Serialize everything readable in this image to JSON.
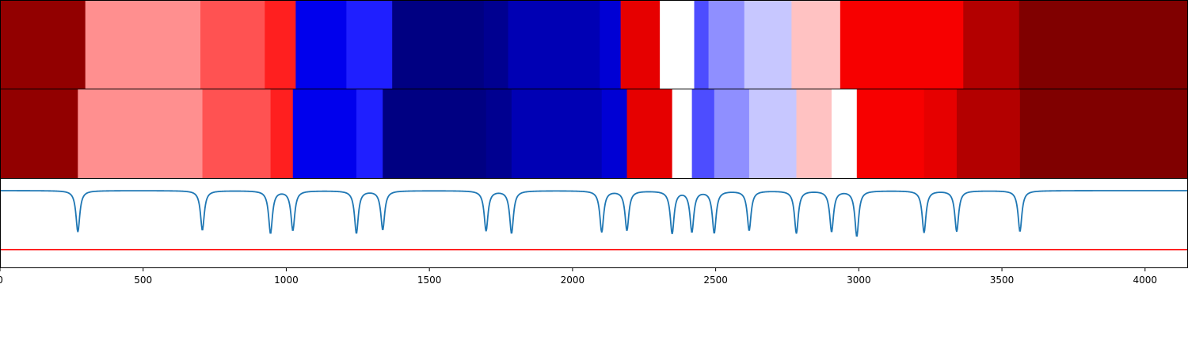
{
  "chart_data": {
    "type": "heatmap",
    "title": "",
    "xlabel": "",
    "ylabel": "",
    "xlim": [
      0,
      4150
    ],
    "x_ticks": [
      0,
      500,
      1000,
      1500,
      2000,
      2500,
      3000,
      3500,
      4000
    ],
    "x_tick_labels": [
      "0",
      "500",
      "1000",
      "1500",
      "2000",
      "2500",
      "3000",
      "3500",
      "4000"
    ],
    "colormap": "seismic",
    "rows": [
      {
        "segments": [
          {
            "start": 0,
            "end": 298,
            "value": 0.93
          },
          {
            "start": 298,
            "end": 700,
            "value": 0.22
          },
          {
            "start": 700,
            "end": 925,
            "value": 0.34
          },
          {
            "start": 925,
            "end": 1033,
            "value": 0.44
          },
          {
            "start": 1033,
            "end": 1210,
            "value": -0.55
          },
          {
            "start": 1210,
            "end": 1370,
            "value": -0.44
          },
          {
            "start": 1370,
            "end": 1690,
            "value": -0.85
          },
          {
            "start": 1690,
            "end": 1775,
            "value": -0.81
          },
          {
            "start": 1775,
            "end": 2095,
            "value": -0.71
          },
          {
            "start": 2095,
            "end": 2168,
            "value": -0.62
          },
          {
            "start": 2168,
            "end": 2305,
            "value": 0.6
          },
          {
            "start": 2305,
            "end": 2425,
            "value": 0.0
          },
          {
            "start": 2425,
            "end": 2475,
            "value": -0.35
          },
          {
            "start": 2475,
            "end": 2600,
            "value": -0.22
          },
          {
            "start": 2600,
            "end": 2765,
            "value": -0.11
          },
          {
            "start": 2765,
            "end": 2935,
            "value": 0.12
          },
          {
            "start": 2935,
            "end": 3365,
            "value": 0.53
          },
          {
            "start": 3365,
            "end": 3560,
            "value": 0.8
          },
          {
            "start": 3560,
            "end": 4150,
            "value": 1.0
          }
        ]
      },
      {
        "segments": [
          {
            "start": 0,
            "end": 272,
            "value": 0.93
          },
          {
            "start": 272,
            "end": 707,
            "value": 0.22
          },
          {
            "start": 707,
            "end": 945,
            "value": 0.34
          },
          {
            "start": 945,
            "end": 1023,
            "value": 0.44
          },
          {
            "start": 1023,
            "end": 1245,
            "value": -0.55
          },
          {
            "start": 1245,
            "end": 1337,
            "value": -0.44
          },
          {
            "start": 1337,
            "end": 1698,
            "value": -0.85
          },
          {
            "start": 1698,
            "end": 1787,
            "value": -0.81
          },
          {
            "start": 1787,
            "end": 2102,
            "value": -0.71
          },
          {
            "start": 2102,
            "end": 2190,
            "value": -0.62
          },
          {
            "start": 2190,
            "end": 2348,
            "value": 0.6
          },
          {
            "start": 2348,
            "end": 2417,
            "value": 0.0
          },
          {
            "start": 2417,
            "end": 2495,
            "value": -0.35
          },
          {
            "start": 2495,
            "end": 2617,
            "value": -0.22
          },
          {
            "start": 2617,
            "end": 2782,
            "value": -0.11
          },
          {
            "start": 2782,
            "end": 2905,
            "value": 0.12
          },
          {
            "start": 2905,
            "end": 2993,
            "value": 0.0
          },
          {
            "start": 2993,
            "end": 3228,
            "value": 0.53
          },
          {
            "start": 3228,
            "end": 3342,
            "value": 0.6
          },
          {
            "start": 3342,
            "end": 3563,
            "value": 0.8
          },
          {
            "start": 3563,
            "end": 4150,
            "value": 1.0
          }
        ]
      }
    ],
    "line_plot": {
      "baseline": 1.0,
      "ylim": [
        -0.3,
        1.2
      ],
      "line_color": "#1f77b4",
      "dips": [
        {
          "x": 272,
          "depth": 0.7
        },
        {
          "x": 707,
          "depth": 0.67
        },
        {
          "x": 945,
          "depth": 0.72
        },
        {
          "x": 1023,
          "depth": 0.67
        },
        {
          "x": 1245,
          "depth": 0.72
        },
        {
          "x": 1337,
          "depth": 0.66
        },
        {
          "x": 1698,
          "depth": 0.68
        },
        {
          "x": 1787,
          "depth": 0.72
        },
        {
          "x": 2102,
          "depth": 0.7
        },
        {
          "x": 2190,
          "depth": 0.67
        },
        {
          "x": 2348,
          "depth": 0.72
        },
        {
          "x": 2417,
          "depth": 0.69
        },
        {
          "x": 2495,
          "depth": 0.71
        },
        {
          "x": 2617,
          "depth": 0.67
        },
        {
          "x": 2782,
          "depth": 0.72
        },
        {
          "x": 2905,
          "depth": 0.69
        },
        {
          "x": 2993,
          "depth": 0.77
        },
        {
          "x": 3228,
          "depth": 0.71
        },
        {
          "x": 3342,
          "depth": 0.69
        },
        {
          "x": 3563,
          "depth": 0.69
        }
      ],
      "hline": {
        "y": 0.0,
        "color": "#ff0000"
      }
    },
    "grid": false,
    "legend": "none"
  }
}
